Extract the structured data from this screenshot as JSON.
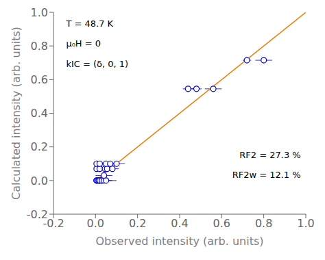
{
  "chart_data": {
    "type": "scatter",
    "xlabel": "Observed intensity (arb. units)",
    "ylabel": "Calculated intensity (arb. units)",
    "xlim": [
      -0.2,
      1.0
    ],
    "ylim": [
      -0.2,
      1.0
    ],
    "xticks": [
      -0.2,
      {
        "value": 0,
        "label": "0.0"
      },
      0.2,
      0.4,
      0.6,
      0.8,
      {
        "value": 1,
        "label": "1.0"
      }
    ],
    "yticks": [
      -0.2,
      {
        "value": 0,
        "label": "0.0"
      },
      0.2,
      0.4,
      0.6,
      0.8,
      {
        "value": 1,
        "label": "1.0"
      }
    ],
    "grid": false,
    "series": [
      {
        "type": "line",
        "color": "#e8820c",
        "x": [
          0,
          1
        ],
        "values": [
          0,
          1
        ]
      },
      {
        "type": "scatter",
        "color": "#0000cc",
        "marker": "circle",
        "x": [
          0.005,
          0.005,
          0.01,
          0.015,
          0.02,
          0.02,
          0.03,
          0.03,
          0.04,
          0.05,
          0.04,
          0.005,
          0.02,
          0.045,
          0.055,
          0.08,
          0.005,
          0.02,
          0.05,
          0.07,
          0.1,
          0.44,
          0.48,
          0.56,
          0.72,
          0.8
        ],
        "values": [
          0.0,
          0.0,
          0.0,
          0.0,
          0.0,
          0.0,
          0.0,
          0.0,
          0.0,
          0.0,
          0.03,
          0.07,
          0.07,
          0.07,
          0.07,
          0.07,
          0.1,
          0.1,
          0.1,
          0.1,
          0.1,
          0.545,
          0.545,
          0.545,
          0.715,
          0.715
        ],
        "xerr": [
          0.004,
          0.004,
          0.006,
          0.01,
          0.015,
          0.015,
          0.02,
          0.04,
          0.04,
          0.05,
          0.04,
          0.004,
          0.015,
          0.02,
          0.025,
          0.03,
          0.004,
          0.015,
          0.02,
          0.025,
          0.04,
          0.025,
          0.025,
          0.04,
          0.02,
          0.04
        ],
        "yerr": [
          0.003,
          0.003,
          0.003,
          0.003,
          0.003,
          0.003,
          0.003,
          0.003,
          0.003,
          0.003,
          0.004,
          0.004,
          0.004,
          0.004,
          0.004,
          0.004,
          0.004,
          0.004,
          0.004,
          0.004,
          0.004,
          0.004,
          0.004,
          0.004,
          0.004,
          0.004
        ]
      }
    ],
    "annotations": [
      "T = 48.7 K",
      "μ₀H = 0",
      "kIC = (δ, 0, 1)",
      "RF2 = 27.3 %",
      "RF2w = 12.1 %"
    ]
  }
}
